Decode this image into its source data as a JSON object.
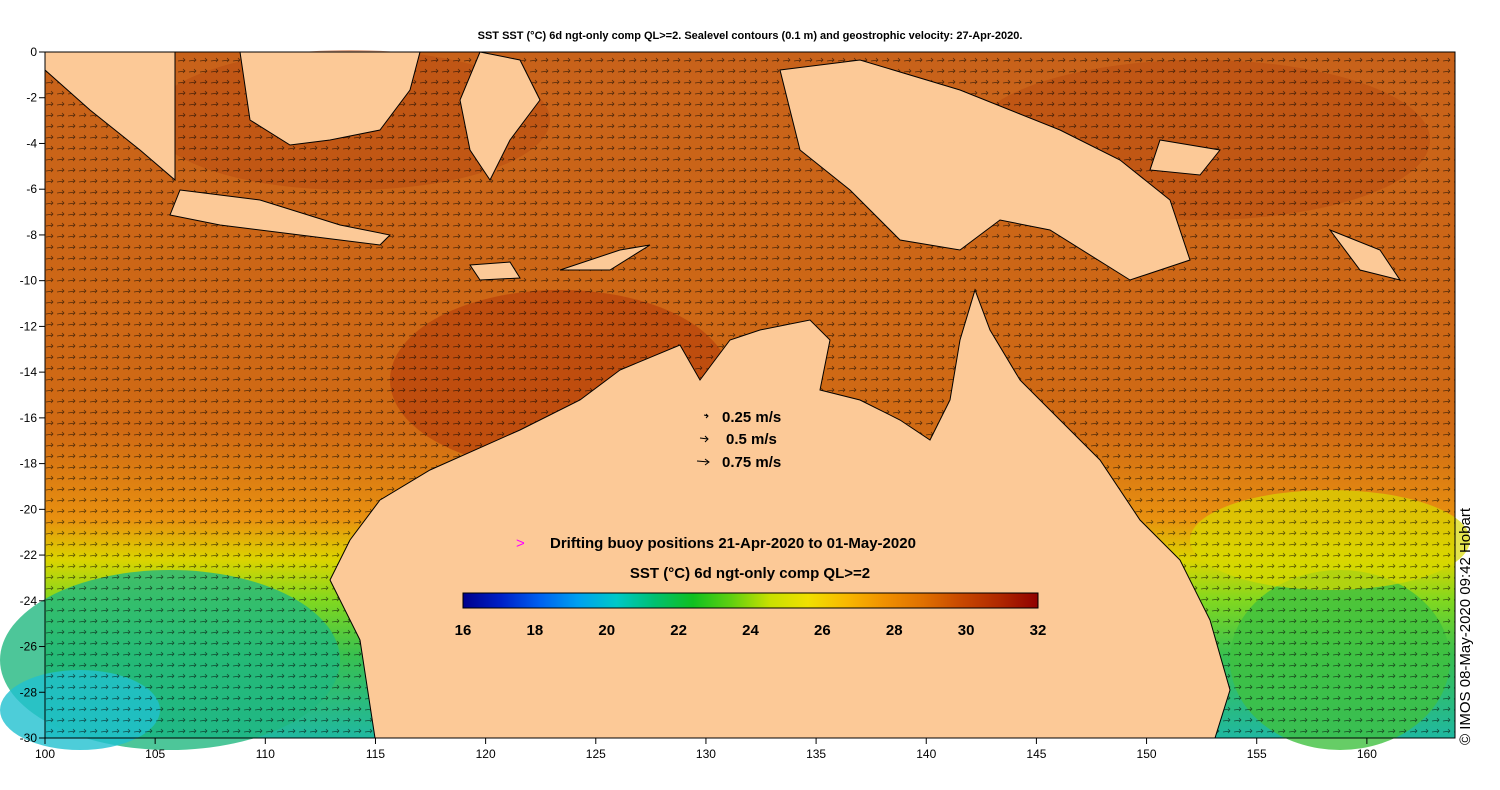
{
  "title": "SST SST (°C) 6d ngt-only comp QL>=2. Sealevel contours (0.1 m) and geostrophic velocity: 27-Apr-2020.",
  "axes": {
    "x_ticks": [
      100,
      105,
      110,
      115,
      120,
      125,
      130,
      135,
      140,
      145,
      150,
      155,
      160
    ],
    "y_ticks": [
      0,
      -2,
      -4,
      -6,
      -8,
      -10,
      -12,
      -14,
      -16,
      -18,
      -20,
      -22,
      -24,
      -26,
      -28,
      -30
    ],
    "xlim": [
      100,
      164
    ],
    "ylim": [
      -30,
      0
    ]
  },
  "velocity_legend": [
    "0.25 m/s",
    "0.5 m/s",
    "0.75 m/s"
  ],
  "buoy_legend": {
    "label": "Drifting buoy positions 21-Apr-2020 to 01-May-2020",
    "color": "#ff00ff"
  },
  "colorbar": {
    "title": "SST (°C) 6d ngt-only comp QL>=2",
    "ticks": [
      16,
      18,
      20,
      22,
      24,
      26,
      28,
      30,
      32
    ],
    "range": [
      16,
      32
    ],
    "colors": [
      "#00008c",
      "#0020c8",
      "#0060f0",
      "#00a0f0",
      "#00c8c8",
      "#00c070",
      "#10c020",
      "#60d010",
      "#c8e000",
      "#f0e000",
      "#f8b800",
      "#f09000",
      "#e07000",
      "#c84800",
      "#b02800",
      "#900000"
    ]
  },
  "credit": "© IMOS 08-May-2020 09:42 Hobart",
  "colors": {
    "land": "#fcc997",
    "sea_warm": "#c85a14",
    "sea_hot": "#b43c0a",
    "sea_mid": "#e07d0f",
    "sea_yellow": "#e8d800",
    "sea_green": "#40c840",
    "sea_cyan": "#20b8b0"
  }
}
